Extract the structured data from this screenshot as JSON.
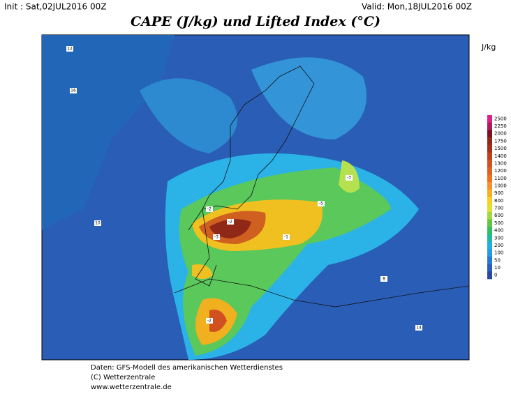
{
  "header": {
    "init": "Init : Sat,02JUL2016 00Z",
    "valid": "Valid: Mon,18JUL2016 00Z",
    "title": "CAPE (J/kg) und Lifted Index (°C)"
  },
  "legend": {
    "unit": "J/kg",
    "levels": [
      2500,
      2250,
      2000,
      1750,
      1500,
      1400,
      1300,
      1200,
      1100,
      1000,
      900,
      800,
      700,
      600,
      500,
      400,
      300,
      200,
      100,
      50,
      10,
      0
    ],
    "colors": [
      "#e0208a",
      "#b01860",
      "#801020",
      "#902818",
      "#a83018",
      "#c04018",
      "#d05020",
      "#e06020",
      "#f07020",
      "#f89030",
      "#f8b020",
      "#f8d020",
      "#e0e030",
      "#a0d840",
      "#60c840",
      "#30c060",
      "#20b8a0",
      "#20b0e0",
      "#2898e8",
      "#2878d8",
      "#2860c0",
      "#2848a8"
    ]
  },
  "map_labels": [
    "-2",
    "-3",
    "-5",
    "-2",
    "-1",
    "-3",
    "-2",
    "10",
    "12",
    "16",
    "8",
    "14"
  ],
  "footer": [
    "Daten: GFS-Modell des amerikanischen Wetterdienstes",
    "(C) Wetterzentrale",
    "www.wetterzentrale.de"
  ]
}
